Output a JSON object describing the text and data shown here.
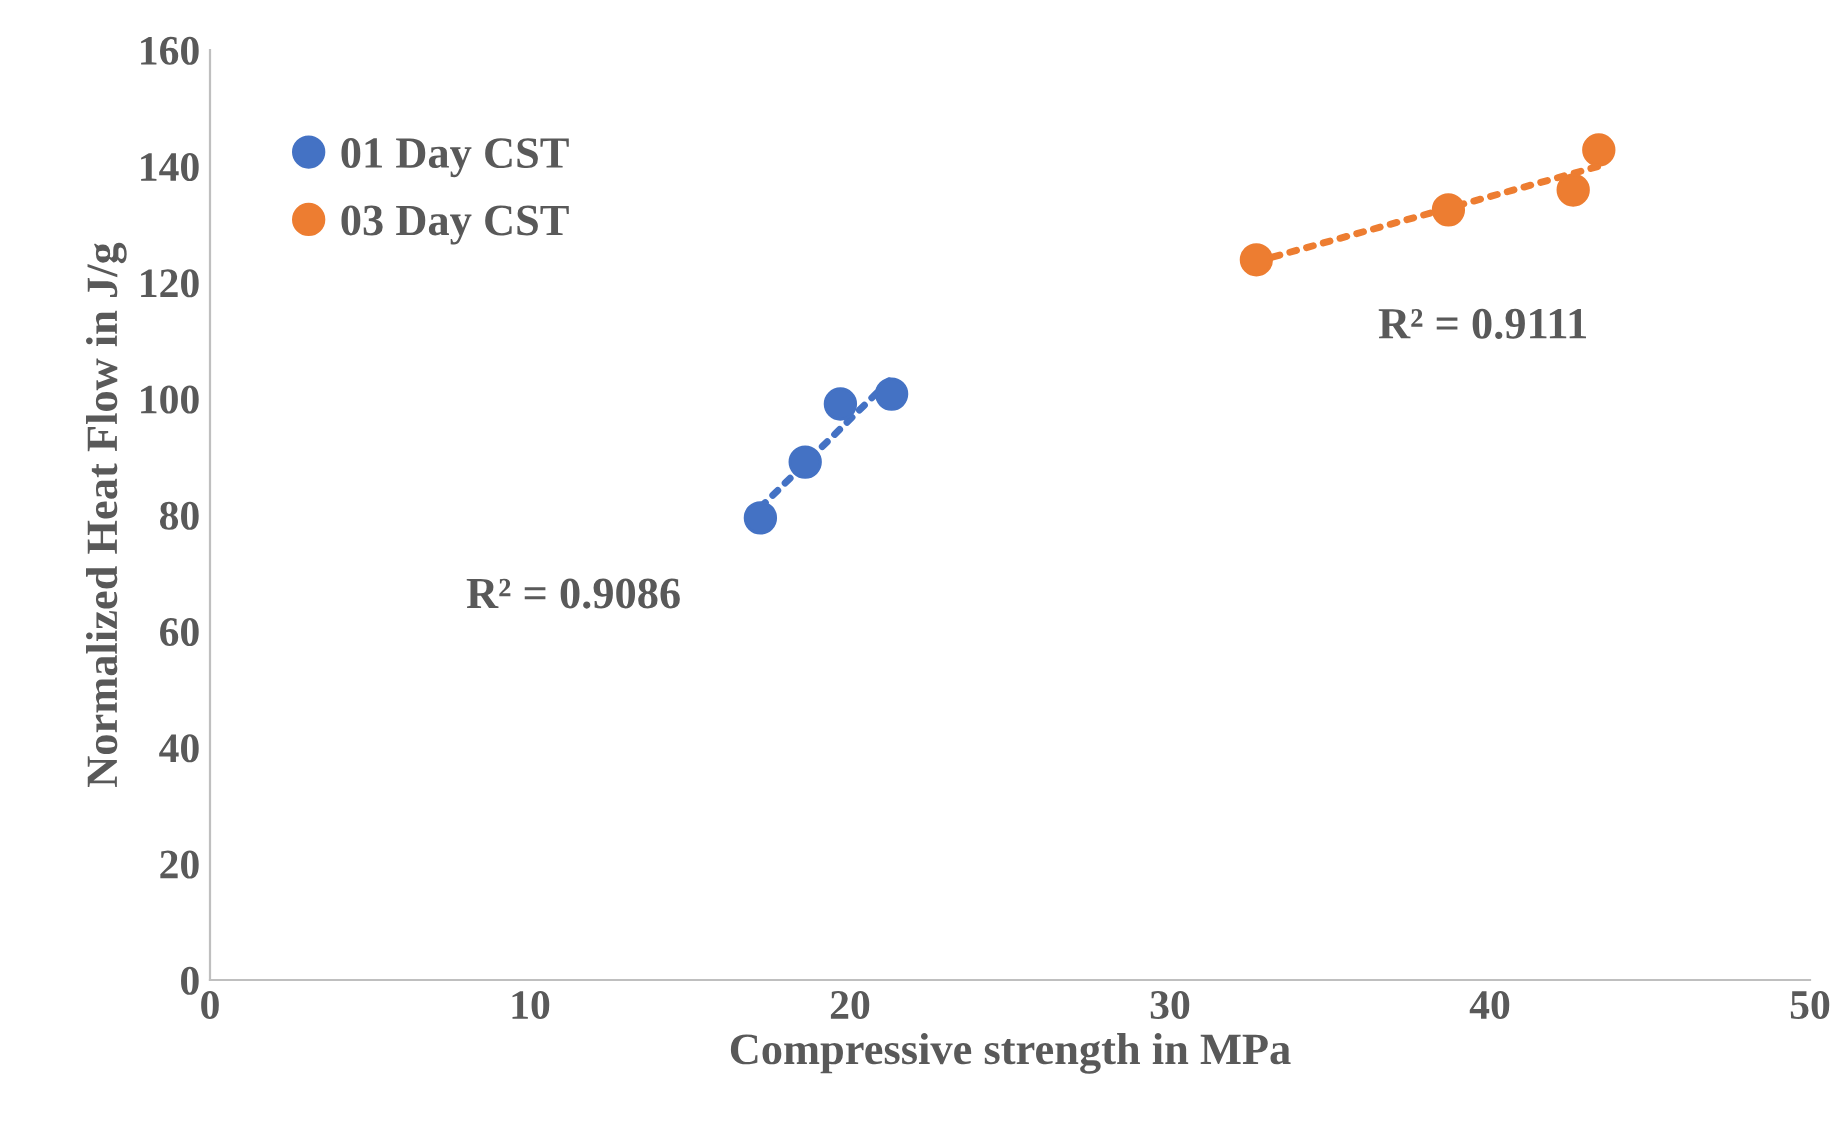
{
  "chart_data": {
    "type": "scatter",
    "xlabel": "Compressive strength in MPa",
    "ylabel": "Normalized Heat Flow in J/g",
    "xlim": [
      0,
      50
    ],
    "xticks": [
      0,
      10,
      20,
      30,
      40,
      50
    ],
    "ylim": [
      0,
      160
    ],
    "yticks": [
      0,
      20,
      40,
      60,
      80,
      100,
      120,
      140,
      160
    ],
    "grid": false,
    "legend": "top left",
    "series": [
      {
        "name": "01 Day CST",
        "color": "#4472c4",
        "marker": "circle",
        "x": [
          17.2,
          18.6,
          19.7,
          21.3
        ],
        "values": [
          79.5,
          89.1,
          99.1,
          100.8
        ]
      },
      {
        "name": "03 Day CST",
        "color": "#ed7d31",
        "marker": "circle",
        "x": [
          32.7,
          38.7,
          42.6,
          43.4
        ],
        "values": [
          123.9,
          132.5,
          135.9,
          142.8
        ]
      },
      {
        "type": "line",
        "color": "#4472c4",
        "marker": "none",
        "line_style": "dotted",
        "x": [
          17.2,
          21.3
        ],
        "values": [
          81.3,
          103.5
        ]
      },
      {
        "type": "line",
        "color": "#ed7d31",
        "marker": "none",
        "line_style": "dotted",
        "x": [
          32.7,
          43.4
        ],
        "values": [
          123.6,
          140.0
        ]
      }
    ],
    "annotations": [
      "R² = 0.9086",
      "R² = 0.9111"
    ]
  }
}
